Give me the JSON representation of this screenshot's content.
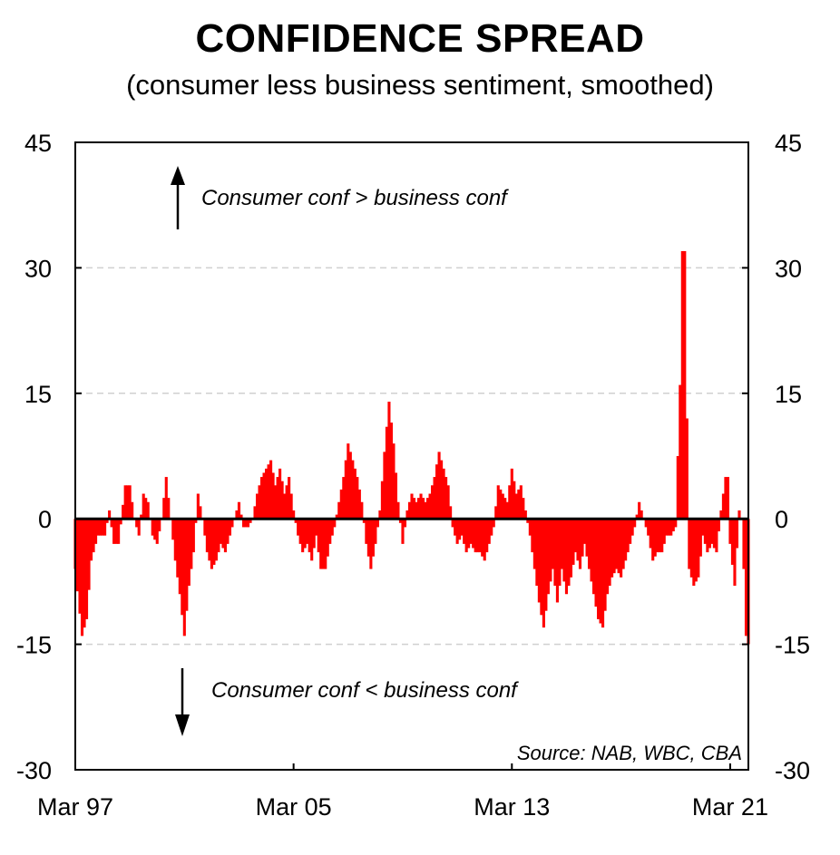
{
  "chart_data": {
    "type": "bar",
    "title": "CONFIDENCE SPREAD",
    "subtitle": "(consumer less business sentiment, smoothed)",
    "source": "Source: NAB, WBC, CBA",
    "annotations": {
      "upper": "Consumer conf > business conf",
      "lower": "Consumer conf < business conf"
    },
    "ylim": [
      -30,
      45
    ],
    "yticks": [
      -30,
      -15,
      0,
      15,
      30,
      45
    ],
    "ytick_labels": [
      "-30",
      "-15",
      "0",
      "15",
      "30",
      "45"
    ],
    "x_range_months": [
      0,
      296
    ],
    "xticks": [
      {
        "label": "Mar 97",
        "month": 0
      },
      {
        "label": "Mar 05",
        "month": 96
      },
      {
        "label": "Mar 13",
        "month": 192
      },
      {
        "label": "Mar 21",
        "month": 288
      }
    ],
    "series": [
      {
        "name": "Confidence spread",
        "color": "#ff0000",
        "knots": [
          [
            0,
            -6
          ],
          [
            3,
            -14
          ],
          [
            5,
            -12
          ],
          [
            7,
            -5
          ],
          [
            10,
            -2
          ],
          [
            13,
            -2
          ],
          [
            15,
            1
          ],
          [
            17,
            -3
          ],
          [
            19,
            -3
          ],
          [
            22,
            4
          ],
          [
            24,
            4
          ],
          [
            26,
            0
          ],
          [
            28,
            -2
          ],
          [
            30,
            3
          ],
          [
            32,
            2
          ],
          [
            34,
            -2
          ],
          [
            36,
            -3
          ],
          [
            38,
            0
          ],
          [
            40,
            5
          ],
          [
            42,
            0
          ],
          [
            44,
            -5
          ],
          [
            46,
            -9
          ],
          [
            48,
            -14
          ],
          [
            50,
            -8
          ],
          [
            52,
            -4
          ],
          [
            54,
            3
          ],
          [
            56,
            0
          ],
          [
            58,
            -4
          ],
          [
            60,
            -6
          ],
          [
            62,
            -5
          ],
          [
            64,
            -3
          ],
          [
            66,
            -4
          ],
          [
            68,
            -2
          ],
          [
            70,
            0
          ],
          [
            72,
            2
          ],
          [
            74,
            -1
          ],
          [
            76,
            -1
          ],
          [
            78,
            0
          ],
          [
            80,
            3
          ],
          [
            82,
            5
          ],
          [
            84,
            6
          ],
          [
            86,
            7
          ],
          [
            88,
            4
          ],
          [
            90,
            6
          ],
          [
            92,
            3
          ],
          [
            94,
            5
          ],
          [
            96,
            1
          ],
          [
            98,
            -2
          ],
          [
            100,
            -4
          ],
          [
            102,
            -3
          ],
          [
            104,
            -5
          ],
          [
            106,
            -2
          ],
          [
            108,
            -6
          ],
          [
            110,
            -6
          ],
          [
            112,
            -3
          ],
          [
            114,
            -1
          ],
          [
            116,
            2
          ],
          [
            118,
            5
          ],
          [
            120,
            9
          ],
          [
            122,
            7
          ],
          [
            124,
            5
          ],
          [
            126,
            2
          ],
          [
            128,
            -3
          ],
          [
            130,
            -6
          ],
          [
            132,
            -3
          ],
          [
            134,
            1
          ],
          [
            136,
            8
          ],
          [
            138,
            14
          ],
          [
            140,
            9
          ],
          [
            142,
            2
          ],
          [
            144,
            -3
          ],
          [
            146,
            1
          ],
          [
            148,
            3
          ],
          [
            150,
            2
          ],
          [
            152,
            3
          ],
          [
            154,
            2
          ],
          [
            156,
            3
          ],
          [
            158,
            5
          ],
          [
            160,
            8
          ],
          [
            162,
            6
          ],
          [
            164,
            4
          ],
          [
            166,
            -1
          ],
          [
            168,
            -3
          ],
          [
            170,
            -2
          ],
          [
            172,
            -4
          ],
          [
            174,
            -3
          ],
          [
            176,
            -4
          ],
          [
            178,
            -4
          ],
          [
            180,
            -5
          ],
          [
            182,
            -3
          ],
          [
            184,
            -1
          ],
          [
            186,
            4
          ],
          [
            188,
            3
          ],
          [
            190,
            2
          ],
          [
            192,
            6
          ],
          [
            194,
            3
          ],
          [
            196,
            4
          ],
          [
            198,
            1
          ],
          [
            200,
            -2
          ],
          [
            202,
            -6
          ],
          [
            204,
            -10
          ],
          [
            206,
            -13
          ],
          [
            208,
            -9
          ],
          [
            210,
            -6
          ],
          [
            212,
            -10
          ],
          [
            214,
            -6
          ],
          [
            216,
            -9
          ],
          [
            218,
            -7
          ],
          [
            220,
            -4
          ],
          [
            222,
            -6
          ],
          [
            224,
            -3
          ],
          [
            226,
            -6
          ],
          [
            228,
            -9
          ],
          [
            230,
            -12
          ],
          [
            232,
            -13
          ],
          [
            234,
            -9
          ],
          [
            236,
            -7
          ],
          [
            238,
            -6
          ],
          [
            240,
            -7
          ],
          [
            242,
            -5
          ],
          [
            244,
            -3
          ],
          [
            246,
            -1
          ],
          [
            248,
            2
          ],
          [
            250,
            0
          ],
          [
            252,
            -2
          ],
          [
            254,
            -5
          ],
          [
            256,
            -4
          ],
          [
            258,
            -4
          ],
          [
            260,
            -2
          ],
          [
            262,
            -2
          ],
          [
            264,
            -1
          ],
          [
            266,
            16
          ],
          [
            267,
            32
          ],
          [
            268,
            32
          ],
          [
            269,
            12
          ],
          [
            270,
            -6
          ],
          [
            272,
            -8
          ],
          [
            274,
            -7
          ],
          [
            276,
            -2
          ],
          [
            278,
            -4
          ],
          [
            280,
            -3
          ],
          [
            282,
            -4
          ],
          [
            284,
            1
          ],
          [
            286,
            5
          ],
          [
            287,
            5
          ],
          [
            288,
            -3
          ],
          [
            290,
            -8
          ],
          [
            292,
            1
          ],
          [
            293,
            0
          ],
          [
            294,
            -6
          ],
          [
            295,
            -14
          ],
          [
            296,
            -15
          ]
        ]
      }
    ]
  }
}
